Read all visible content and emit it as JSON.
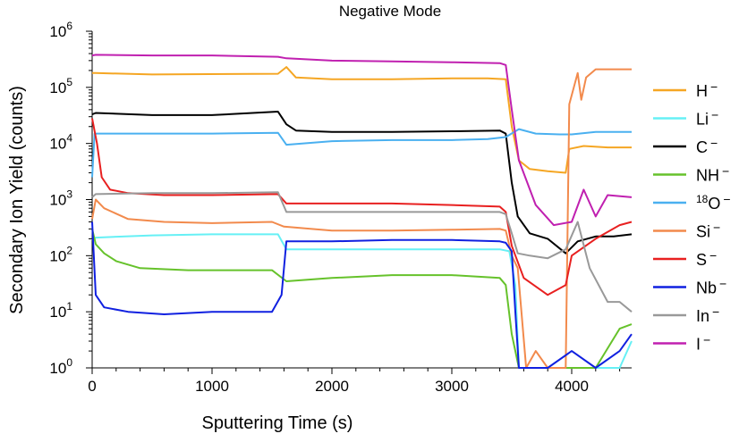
{
  "chart_data": {
    "type": "line",
    "title": "Negative Mode",
    "xlabel": "Sputtering Time (s)",
    "ylabel": "Secondary Ion Yield (counts)",
    "xlim": [
      0,
      4500
    ],
    "ylim": [
      1,
      1000000
    ],
    "yscale": "log",
    "x_ticks": [
      0,
      1000,
      2000,
      3000,
      4000
    ],
    "x_tick_labels": [
      "0",
      "1000",
      "2000",
      "3000",
      "4000"
    ],
    "y_tick_exponents": [
      0,
      1,
      2,
      3,
      4,
      5,
      6
    ],
    "y_tick_base": "10",
    "legend_position": "right",
    "series": [
      {
        "name": "H",
        "charge": "−",
        "mass": "",
        "color": "#f5a623",
        "x": [
          0,
          30,
          500,
          1550,
          1620,
          1700,
          2000,
          2500,
          3000,
          3300,
          3450,
          3500,
          3560,
          3650,
          3800,
          3950,
          3980,
          4100,
          4300,
          4500
        ],
        "y": [
          180000,
          180000,
          170000,
          175000,
          230000,
          150000,
          140000,
          140000,
          145000,
          145000,
          140000,
          20000,
          5000,
          3500,
          3200,
          3000,
          8000,
          9000,
          8500,
          8500
        ]
      },
      {
        "name": "Li",
        "charge": "−",
        "mass": "",
        "color": "#66f0f5",
        "x": [
          0,
          30,
          500,
          1000,
          1550,
          1620,
          2000,
          2500,
          3000,
          3400,
          3480,
          3530,
          3560,
          3800,
          4000,
          4200,
          4400,
          4500
        ],
        "y": [
          190,
          210,
          230,
          240,
          240,
          130,
          130,
          130,
          130,
          130,
          120,
          30,
          1,
          1,
          1,
          1,
          1,
          3
        ]
      },
      {
        "name": "C",
        "charge": "−",
        "mass": "",
        "color": "#000000",
        "x": [
          0,
          30,
          500,
          1000,
          1550,
          1620,
          1700,
          2000,
          2500,
          3000,
          3400,
          3450,
          3500,
          3550,
          3650,
          3800,
          3950,
          4050,
          4200,
          4350,
          4500
        ],
        "y": [
          33000,
          35000,
          32000,
          32000,
          37000,
          22000,
          17000,
          16000,
          16000,
          16500,
          17000,
          15000,
          2000,
          500,
          250,
          200,
          110,
          180,
          220,
          220,
          240
        ]
      },
      {
        "name": "NH",
        "charge": "−",
        "mass": "",
        "color": "#66c22b",
        "x": [
          0,
          30,
          100,
          200,
          400,
          800,
          1200,
          1500,
          1620,
          2000,
          2500,
          3000,
          3400,
          3450,
          3500,
          3560,
          3650,
          4000,
          4200,
          4400,
          4500
        ],
        "y": [
          300,
          160,
          110,
          80,
          60,
          55,
          55,
          55,
          35,
          40,
          45,
          45,
          40,
          30,
          4,
          1,
          1,
          1,
          1,
          5,
          6
        ]
      },
      {
        "name": "O",
        "charge": "−",
        "mass": "18",
        "color": "#4ab0f0",
        "x": [
          0,
          20,
          60,
          500,
          1000,
          1550,
          1620,
          2000,
          2500,
          3000,
          3300,
          3450,
          3560,
          3700,
          3900,
          4000,
          4200,
          4500
        ],
        "y": [
          2500,
          15000,
          15000,
          15000,
          15000,
          15500,
          9500,
          11000,
          11500,
          11500,
          12000,
          13000,
          18000,
          15000,
          14500,
          14500,
          16000,
          16000
        ]
      },
      {
        "name": "Si",
        "charge": "−",
        "mass": "",
        "color": "#f28a4c",
        "x": [
          0,
          30,
          100,
          300,
          600,
          1000,
          1500,
          1600,
          2000,
          2500,
          3000,
          3400,
          3450,
          3500,
          3550,
          3620,
          3700,
          3800,
          3950,
          3980,
          4050,
          4080,
          4120,
          4200,
          4300,
          4500
        ],
        "y": [
          450,
          1000,
          700,
          450,
          400,
          380,
          400,
          330,
          280,
          280,
          290,
          300,
          280,
          100,
          60,
          1,
          2,
          1,
          1,
          50000,
          180000,
          60000,
          150000,
          210000,
          210000,
          210000
        ]
      },
      {
        "name": "S",
        "charge": "−",
        "mass": "",
        "color": "#e82020",
        "x": [
          0,
          40,
          80,
          150,
          300,
          600,
          1000,
          1550,
          1620,
          2000,
          2500,
          3000,
          3400,
          3450,
          3500,
          3600,
          3800,
          3950,
          4000,
          4200,
          4400,
          4500
        ],
        "y": [
          28000,
          10000,
          2500,
          1500,
          1300,
          1200,
          1200,
          1250,
          850,
          850,
          850,
          800,
          750,
          600,
          150,
          40,
          20,
          30,
          100,
          200,
          350,
          400
        ]
      },
      {
        "name": "Nb",
        "charge": "−",
        "mass": "",
        "color": "#1020e0",
        "x": [
          0,
          30,
          100,
          300,
          600,
          1000,
          1500,
          1580,
          1620,
          2000,
          2500,
          3000,
          3400,
          3450,
          3500,
          3530,
          3560,
          3800,
          4000,
          4200,
          4400,
          4500
        ],
        "y": [
          400,
          20,
          12,
          10,
          9,
          10,
          10,
          20,
          180,
          180,
          190,
          190,
          180,
          170,
          120,
          10,
          1,
          1,
          2,
          1,
          2,
          4
        ]
      },
      {
        "name": "In",
        "charge": "−",
        "mass": "",
        "color": "#999999",
        "x": [
          0,
          30,
          500,
          1000,
          1550,
          1620,
          2000,
          2500,
          3000,
          3400,
          3450,
          3500,
          3550,
          3650,
          3800,
          3950,
          4050,
          4150,
          4300,
          4400,
          4500
        ],
        "y": [
          1100,
          1250,
          1300,
          1300,
          1350,
          600,
          600,
          600,
          600,
          600,
          550,
          250,
          110,
          100,
          90,
          130,
          400,
          60,
          15,
          15,
          10
        ]
      },
      {
        "name": "I",
        "charge": "−",
        "mass": "",
        "color": "#c020b0",
        "x": [
          0,
          30,
          500,
          1000,
          1550,
          1620,
          2000,
          2500,
          3000,
          3400,
          3450,
          3500,
          3560,
          3700,
          3850,
          4000,
          4100,
          4200,
          4300,
          4500
        ],
        "y": [
          370000,
          380000,
          370000,
          370000,
          350000,
          330000,
          300000,
          290000,
          280000,
          270000,
          250000,
          40000,
          5000,
          800,
          350,
          400,
          1500,
          500,
          1200,
          1100
        ]
      }
    ]
  }
}
